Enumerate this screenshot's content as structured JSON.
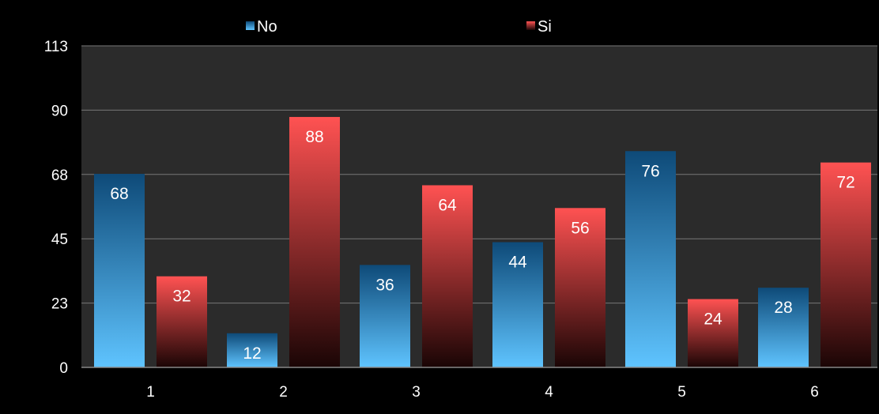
{
  "chart_data": {
    "type": "bar",
    "categories": [
      "1",
      "2",
      "3",
      "4",
      "5",
      "6"
    ],
    "series": [
      {
        "name": "No",
        "values": [
          68,
          12,
          36,
          44,
          76,
          28
        ],
        "color_top": "#0e4a78",
        "color_bottom": "#5fc4ff"
      },
      {
        "name": "Si",
        "values": [
          32,
          88,
          64,
          56,
          24,
          72
        ],
        "color_top": "#ff5252",
        "color_bottom": "#1a0505"
      }
    ],
    "ylim": [
      0,
      113
    ],
    "y_ticks": [
      {
        "value": 0,
        "label": "0"
      },
      {
        "value": 22.6,
        "label": "23"
      },
      {
        "value": 45.2,
        "label": "45"
      },
      {
        "value": 67.8,
        "label": "68"
      },
      {
        "value": 90.4,
        "label": "90"
      },
      {
        "value": 113,
        "label": "113"
      }
    ],
    "grid": true,
    "legend_position": "top",
    "plot_background": "#2b2b2b",
    "gridline_color": "#777777"
  }
}
